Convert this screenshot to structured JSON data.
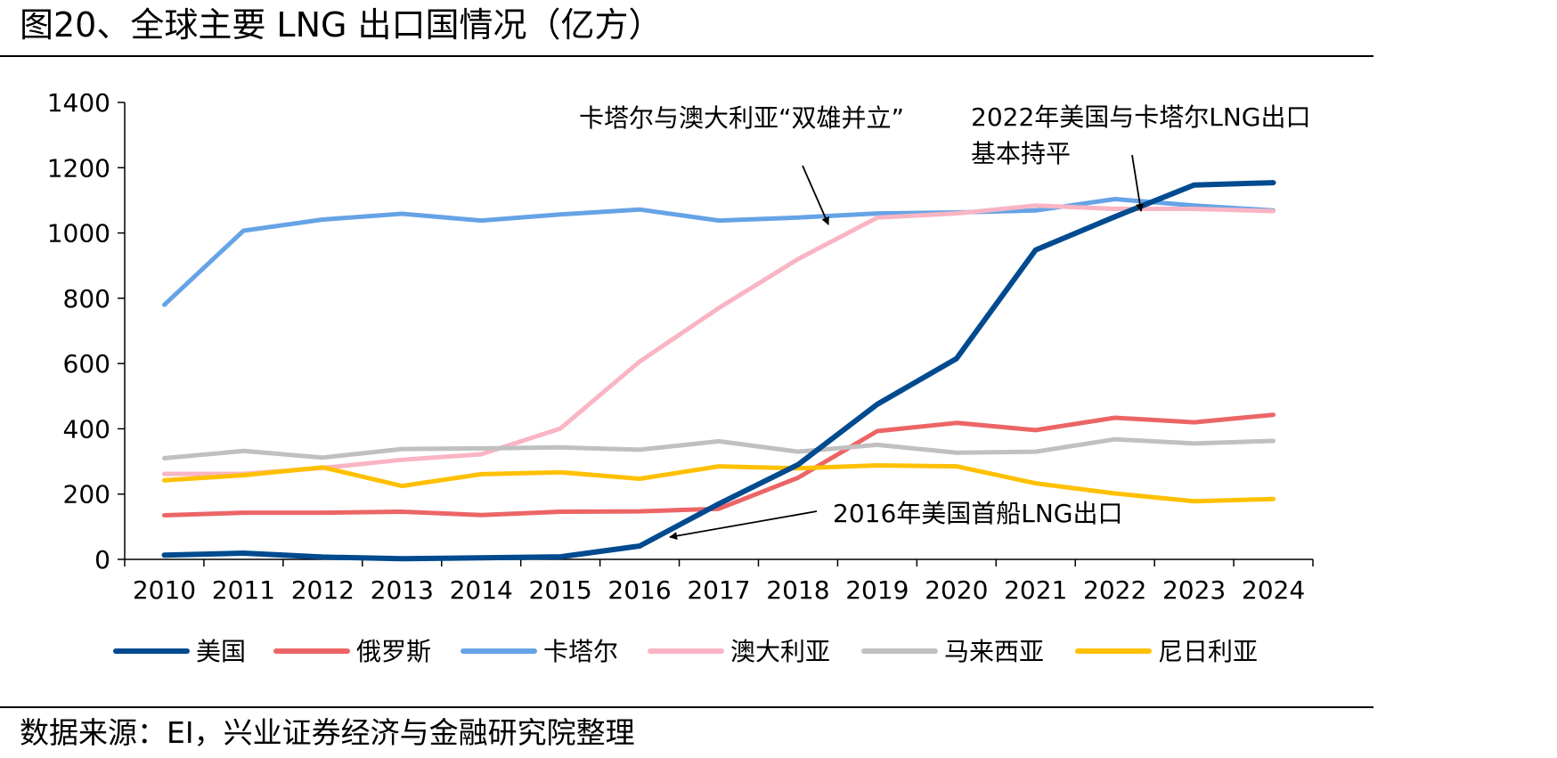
{
  "title": "图20、全球主要 LNG 出口国情况（亿方）",
  "source": "数据来源：EI，兴业证券经济与金融研究院整理",
  "chart_data": {
    "type": "line",
    "title": "图20、全球主要 LNG 出口国情况（亿方）",
    "xlabel": "",
    "ylabel": "",
    "categories": [
      "2010",
      "2011",
      "2012",
      "2013",
      "2014",
      "2015",
      "2016",
      "2017",
      "2018",
      "2019",
      "2020",
      "2021",
      "2022",
      "2023",
      "2024"
    ],
    "ylim": [
      0,
      1400
    ],
    "yticks": [
      0,
      200,
      400,
      600,
      800,
      1000,
      1200,
      1400
    ],
    "grid": false,
    "legend_position": "bottom",
    "series": [
      {
        "name": "美国",
        "color": "#004a8f",
        "values": [
          13,
          19,
          7,
          2,
          5,
          8,
          41,
          170,
          290,
          475,
          615,
          948,
          1050,
          1147,
          1154
        ]
      },
      {
        "name": "俄罗斯",
        "color": "#ec6566",
        "values": [
          135,
          143,
          143,
          146,
          136,
          146,
          147,
          155,
          250,
          393,
          418,
          396,
          434,
          420,
          443
        ]
      },
      {
        "name": "卡塔尔",
        "color": "#66a3e6",
        "values": [
          780,
          1007,
          1041,
          1059,
          1038,
          1057,
          1072,
          1038,
          1047,
          1060,
          1063,
          1069,
          1104,
          1084,
          1069
        ]
      },
      {
        "name": "澳大利亚",
        "color": "#f9b5c4",
        "values": [
          262,
          262,
          280,
          305,
          322,
          401,
          606,
          770,
          920,
          1047,
          1060,
          1084,
          1074,
          1074,
          1067
        ]
      },
      {
        "name": "马来西亚",
        "color": "#c0c0c0",
        "values": [
          310,
          332,
          312,
          338,
          340,
          343,
          336,
          362,
          330,
          351,
          327,
          330,
          368,
          355,
          363
        ]
      },
      {
        "name": "尼日利亚",
        "color": "#ffc000",
        "values": [
          242,
          258,
          282,
          225,
          261,
          267,
          247,
          285,
          279,
          288,
          285,
          233,
          202,
          178,
          185
        ]
      }
    ],
    "annotations": [
      {
        "text": "卡塔尔与澳大利亚“双雄并立”"
      },
      {
        "text": "2022年美国与卡塔尔LNG出口"
      },
      {
        "text": "基本持平"
      },
      {
        "text": "2016年美国首船LNG出口"
      }
    ]
  }
}
